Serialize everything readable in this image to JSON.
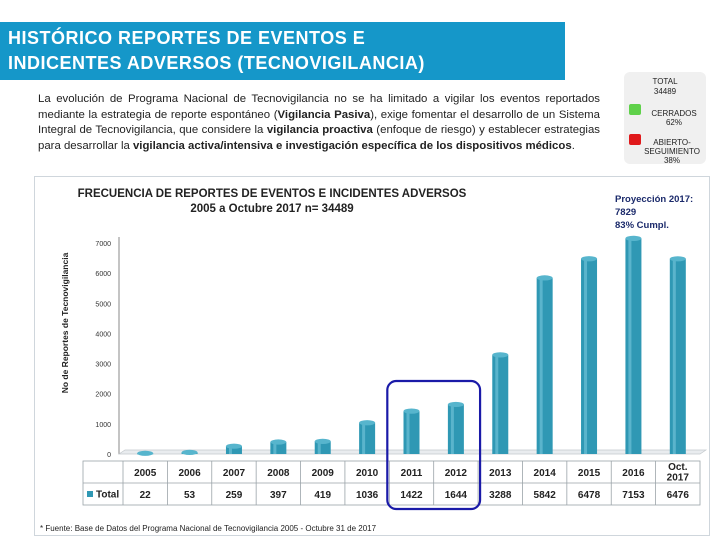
{
  "header": {
    "title_line1": "HISTÓRICO REPORTES DE EVENTOS E",
    "title_line2": "INDICENTES ADVERSOS (TECNOVIGILANCIA)"
  },
  "intro": {
    "p1": "La evolución de Programa Nacional de Tecnovigilancia no se ha limitado a vigilar los eventos reportados mediante la estrategia de reporte espontáneo (",
    "b1": "Vigilancia Pasiva",
    "p2": "), exige fomentar el desarrollo de un Sistema Integral de Tecnovigilancia, que considere la ",
    "b2": "vigilancia proactiva",
    "p3": " (enfoque de riesgo) y establecer estrategias para desarrollar la ",
    "b3": "vigilancia activa/intensiva e investigación específica de los dispositivos médicos",
    "p4": "."
  },
  "status": {
    "total_label": "TOTAL",
    "total_value": "34489",
    "closed_label": "CERRADOS",
    "closed_pct": "62%",
    "open_label": "ABIERTO-",
    "open_label2": "SEGUIMIENTO",
    "open_pct": "38%",
    "closed_color": "#5fd14a",
    "open_color": "#e0191b"
  },
  "chart_data": {
    "type": "bar",
    "title_line1": "FRECUENCIA DE REPORTES DE EVENTOS E INCIDENTES ADVERSOS",
    "title_line2": "2005 a Octubre 2017 n= 34489",
    "ylabel": "No de Reportes de Tecnovigilancia",
    "categories": [
      "2005",
      "2006",
      "2007",
      "2008",
      "2009",
      "2010",
      "2011",
      "2012",
      "2013",
      "2014",
      "2015",
      "2016",
      "Oct. 2017"
    ],
    "series": [
      {
        "name": "Total",
        "values": [
          22,
          53,
          259,
          397,
          419,
          1036,
          1422,
          1644,
          3288,
          5842,
          6478,
          7153,
          6476
        ]
      }
    ],
    "table_values": [
      "22",
      "53",
      "259",
      "397",
      "419",
      "1036",
      "1422",
      "1644",
      "3288",
      "5842",
      "6478",
      "7153",
      "6476"
    ],
    "ylim": [
      0,
      7000
    ],
    "yticks": [
      "0",
      "1000",
      "2000",
      "3000",
      "4000",
      "5000",
      "6000",
      "7000"
    ],
    "grid": false,
    "bar_color": "#2f98b4",
    "highlight_color": "#1a1aa8",
    "highlighted_categories": [
      "2011",
      "2012"
    ],
    "projection_line1": "Proyección 2017:",
    "projection_line2": "7829",
    "projection_line3": "83% Cumpl."
  },
  "footnote": "* Fuente: Base de Datos del Programa Nacional de Tecnovigilancia 2005 - Octubre 31 de 2017"
}
